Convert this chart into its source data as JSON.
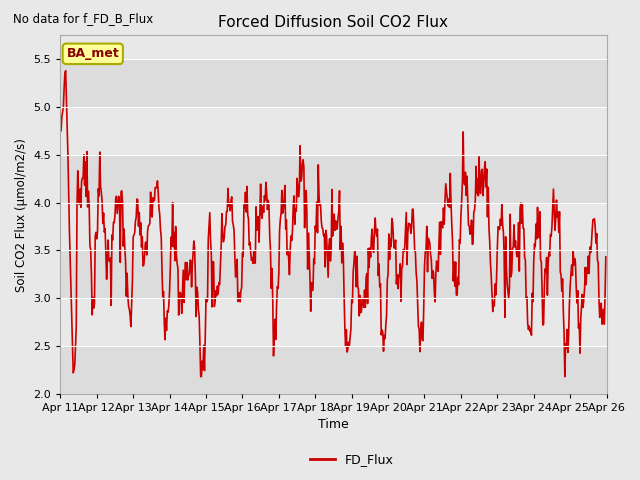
{
  "title": "Forced Diffusion Soil CO2 Flux",
  "no_data_label": "No data for f_FD_B_Flux",
  "ba_met_label": "BA_met",
  "xlabel": "Time",
  "ylabel": "Soil CO2 Flux (μmol/m2/s)",
  "ylim": [
    2.0,
    5.75
  ],
  "yticks": [
    2.0,
    2.5,
    3.0,
    3.5,
    4.0,
    4.5,
    5.0,
    5.5
  ],
  "line_color": "#CC0000",
  "line_width": 1.2,
  "legend_label": "FD_Flux",
  "bg_color": "#E8E8E8",
  "plot_bg_color": "#E8E8E8",
  "grid_color": "white",
  "start_day": 11,
  "end_day": 26,
  "xtick_labels": [
    "Apr 11",
    "Apr 12",
    "Apr 13",
    "Apr 14",
    "Apr 15",
    "Apr 16",
    "Apr 17",
    "Apr 18",
    "Apr 19",
    "Apr 20",
    "Apr 21",
    "Apr 22",
    "Apr 23",
    "Apr 24",
    "Apr 25",
    "Apr 26"
  ],
  "band_colors": [
    "#DCDCDC",
    "#E8E8E8"
  ],
  "seed": 7
}
